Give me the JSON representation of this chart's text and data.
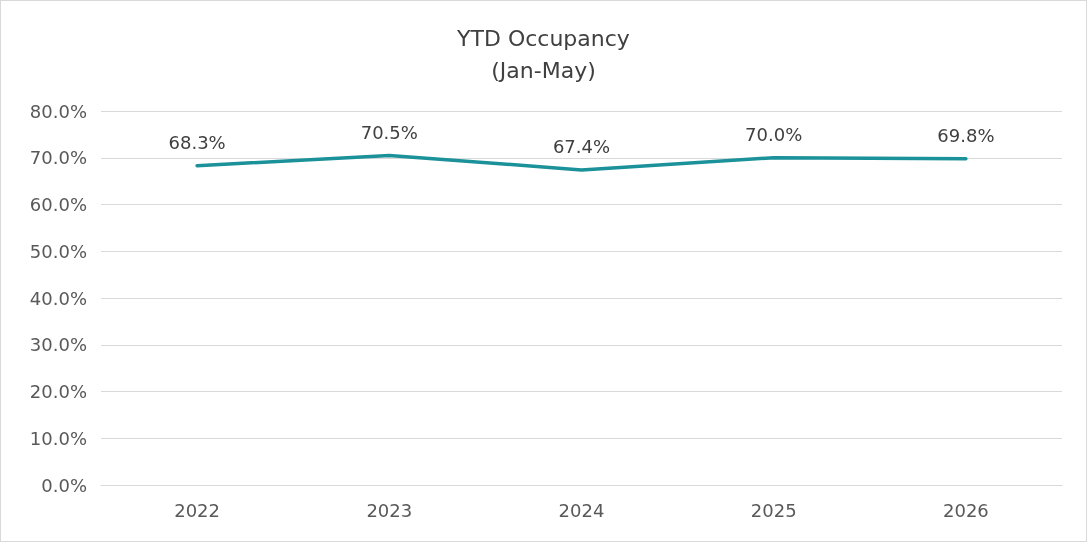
{
  "chart_data": {
    "type": "line",
    "title": "YTD Occupancy",
    "subtitle": "(Jan-May)",
    "categories": [
      "2022",
      "2023",
      "2024",
      "2025",
      "2026"
    ],
    "series": [
      {
        "color": "#1b9199",
        "values": [
          68.3,
          70.5,
          67.4,
          70.0,
          69.8
        ],
        "value_labels": [
          "68.3%",
          "70.5%",
          "67.4%",
          "70.0%",
          "69.8%"
        ]
      }
    ],
    "ylim": [
      0,
      80
    ],
    "yticks": [
      {
        "value": 0,
        "label": "0.0%"
      },
      {
        "value": 10,
        "label": "10.0%"
      },
      {
        "value": 20,
        "label": "20.0%"
      },
      {
        "value": 30,
        "label": "30.0%"
      },
      {
        "value": 40,
        "label": "40.0%"
      },
      {
        "value": 50,
        "label": "50.0%"
      },
      {
        "value": 60,
        "label": "60.0%"
      },
      {
        "value": 70,
        "label": "70.0%"
      },
      {
        "value": 80,
        "label": "80.0%"
      }
    ],
    "grid": "y",
    "marker": "none",
    "line_style": "solid"
  }
}
